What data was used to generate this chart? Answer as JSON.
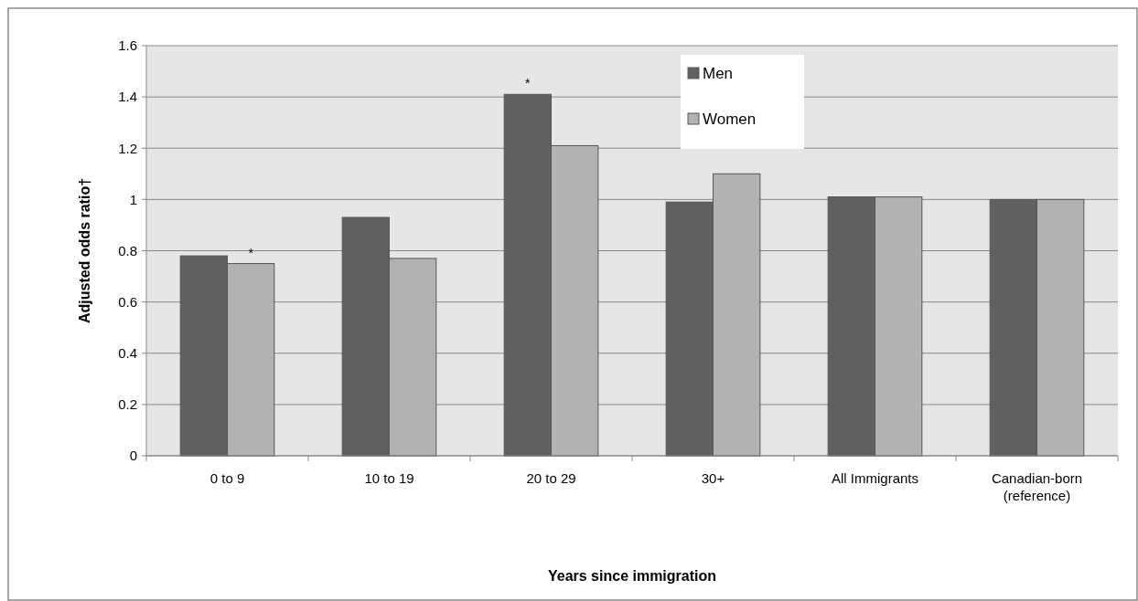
{
  "chart_data": {
    "type": "bar",
    "xlabel": "Years since immigration",
    "ylabel": "Adjusted odds ratio†",
    "categories": [
      "0 to 9",
      "10 to 19",
      "20 to 29",
      "30+",
      "All Immigrants",
      "Canadian-born (reference)"
    ],
    "series": [
      {
        "name": "Men",
        "color": "#606060",
        "values": [
          0.78,
          0.93,
          1.41,
          0.99,
          1.01,
          1.0
        ]
      },
      {
        "name": "Women",
        "color": "#b2b2b2",
        "values": [
          0.75,
          0.77,
          1.21,
          1.1,
          1.01,
          1.0
        ]
      }
    ],
    "ylim": [
      0,
      1.6
    ],
    "yticks": [
      0,
      0.2,
      0.4,
      0.6,
      0.8,
      1,
      1.2,
      1.4,
      1.6
    ],
    "grid": "y",
    "legend": "top",
    "annotations": [
      {
        "text": "*",
        "x": "0 to 9",
        "y": 0.75
      },
      {
        "text": "*",
        "x": "20 to 29",
        "y": 1.41
      }
    ]
  }
}
